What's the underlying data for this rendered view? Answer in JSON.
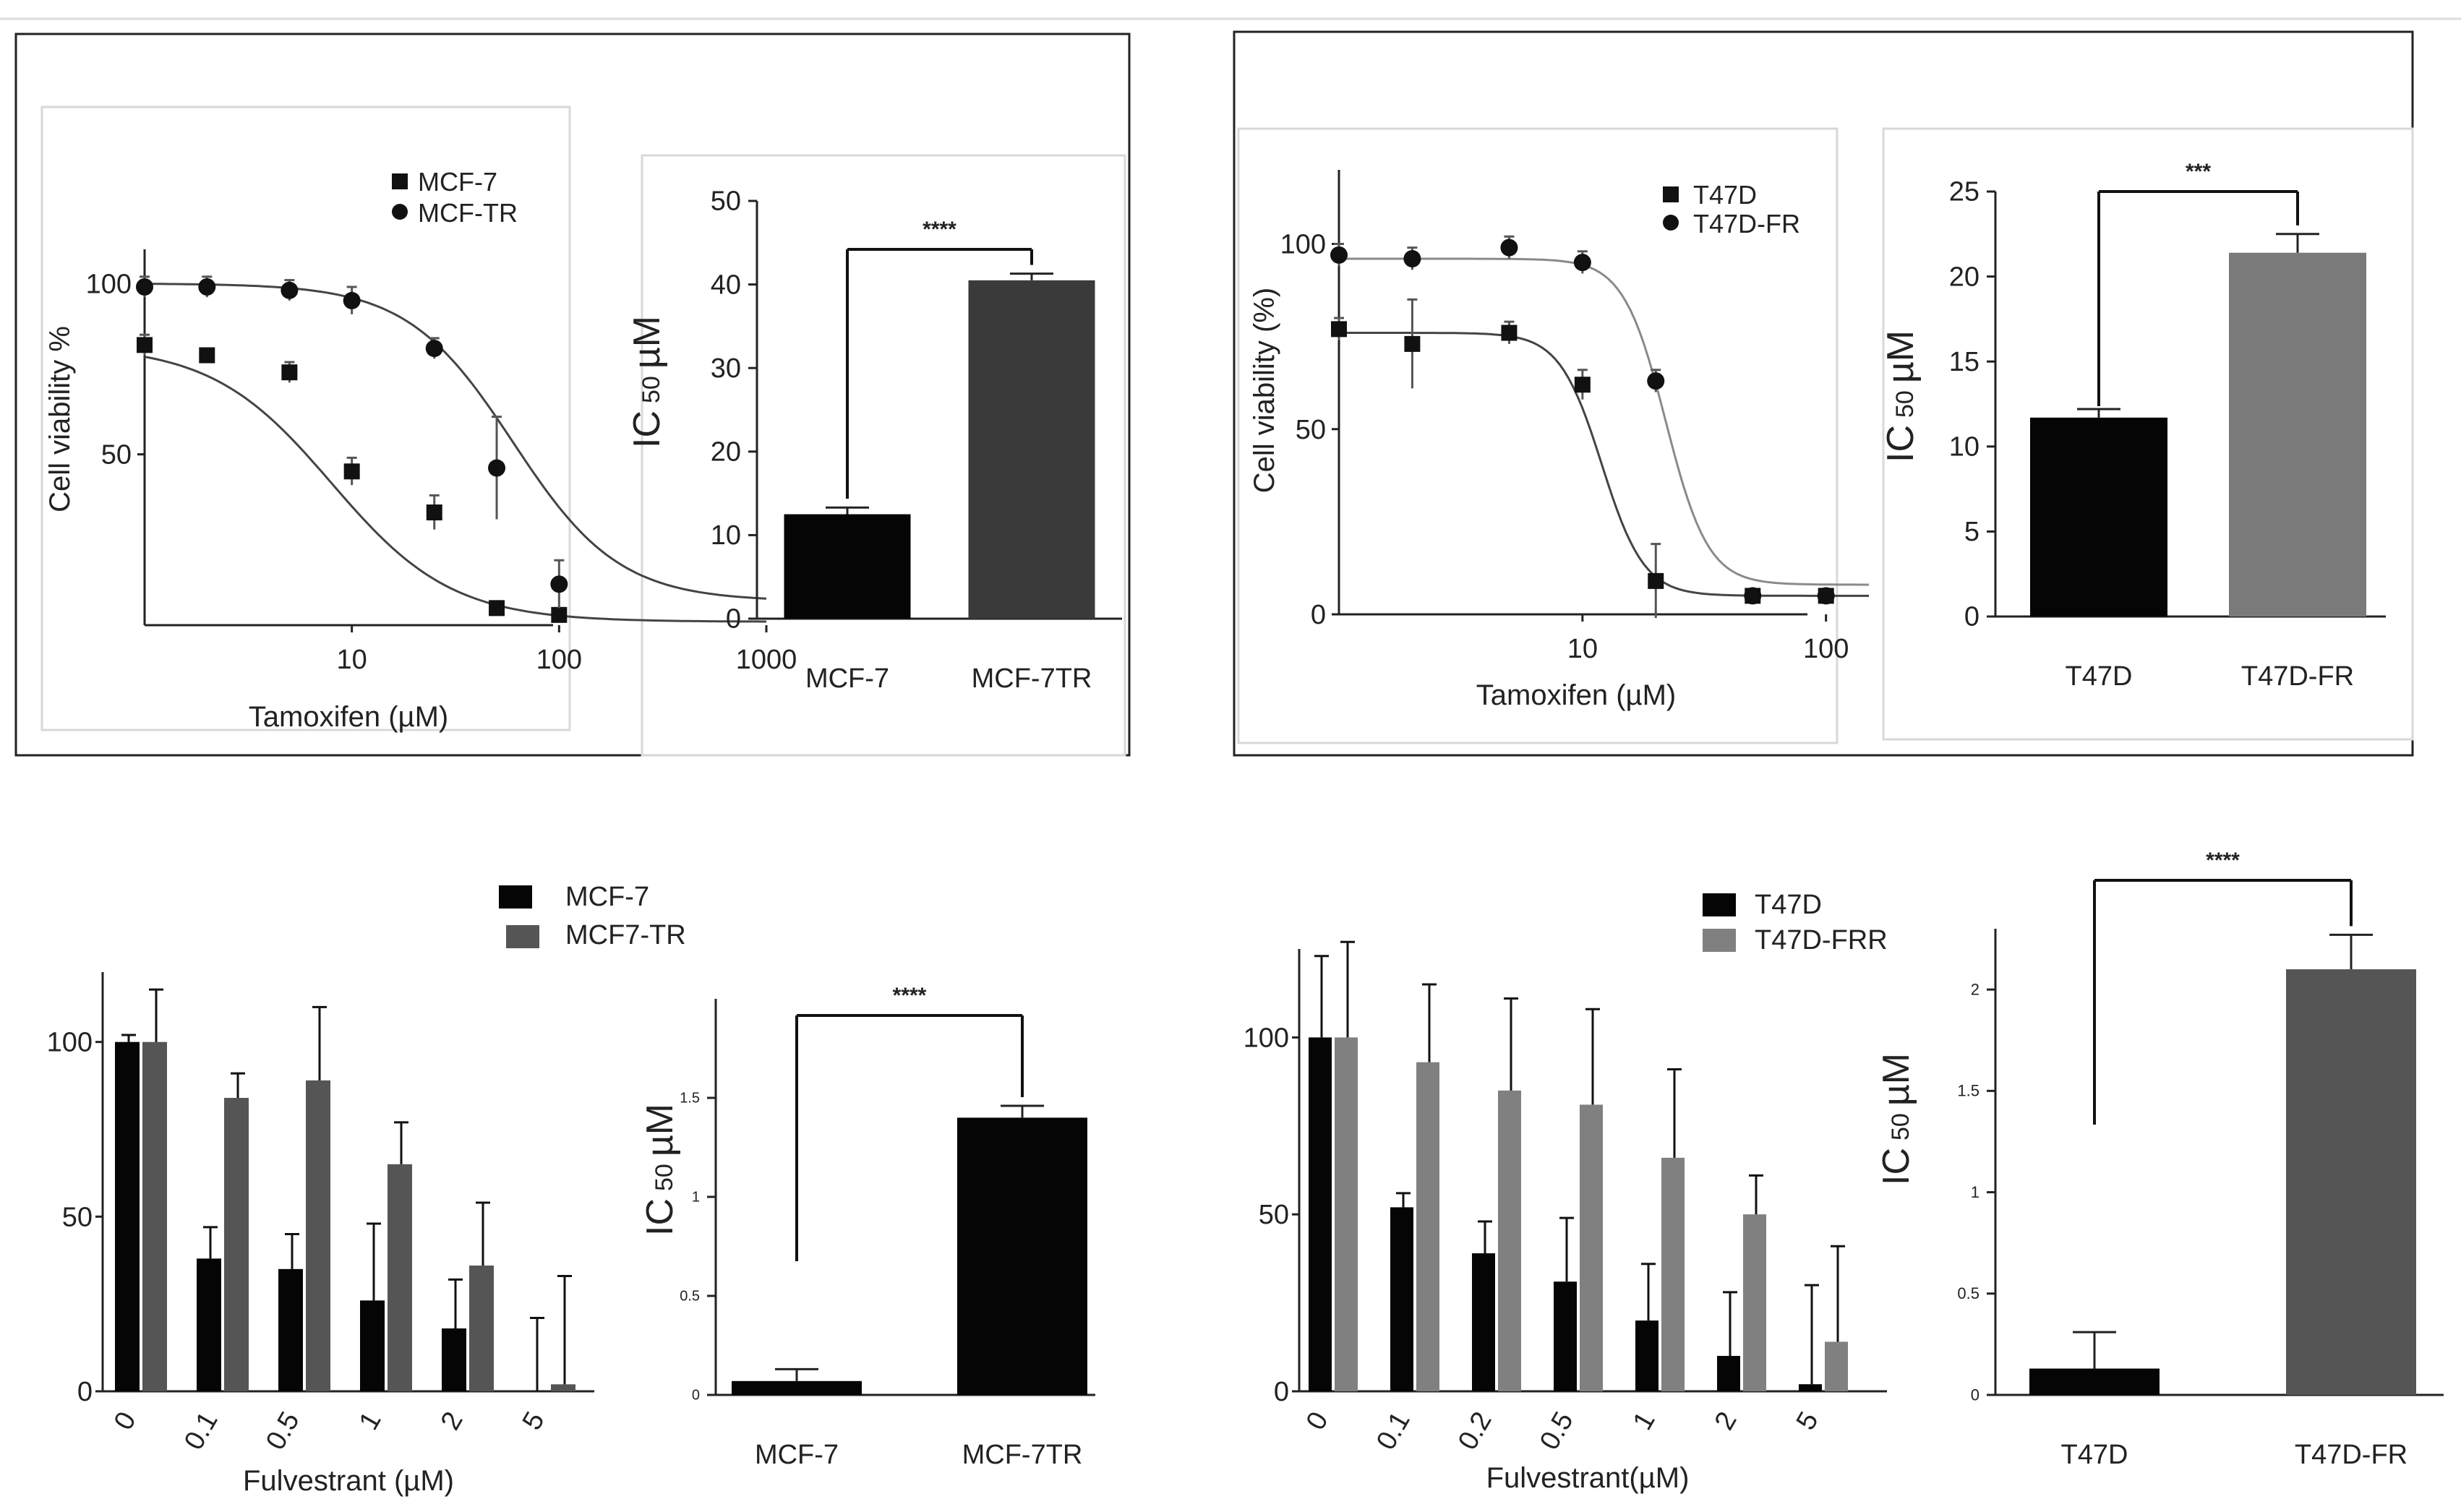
{
  "chart_data": [
    {
      "id": "A",
      "type": "line",
      "title": "",
      "xlabel": "Tamoxifen (µM)",
      "ylabel": "Cell viability %",
      "xscale": "log",
      "xlim": [
        1,
        1000
      ],
      "ylim": [
        0,
        110
      ],
      "xticks": [
        10,
        100,
        1000
      ],
      "xtick_labels": [
        "10",
        "100",
        "1000"
      ],
      "yticks": [
        50,
        100
      ],
      "ytick_labels": [
        "50",
        "100"
      ],
      "legend": [
        {
          "name": "MCF-7",
          "marker": "square"
        },
        {
          "name": "MCF-TR",
          "marker": "circle"
        }
      ],
      "series": [
        {
          "name": "MCF-7",
          "marker": "square",
          "x": [
            1,
            2,
            5,
            10,
            25,
            50,
            100
          ],
          "y": [
            82,
            79,
            74,
            45,
            33,
            5,
            3
          ],
          "err": [
            3,
            2,
            3,
            4,
            5,
            2,
            2
          ],
          "curve": {
            "top": 82,
            "bottom": 1,
            "ic50": 8,
            "hill": 1.5
          }
        },
        {
          "name": "MCF-TR",
          "marker": "circle",
          "x": [
            1,
            2,
            5,
            10,
            25,
            50,
            100
          ],
          "y": [
            99,
            99,
            98,
            95,
            81,
            46,
            12
          ],
          "err": [
            3,
            3,
            3,
            4,
            3,
            15,
            7
          ],
          "curve": {
            "top": 100,
            "bottom": 7,
            "ic50": 60,
            "hill": 1.7
          }
        }
      ]
    },
    {
      "id": "B",
      "type": "bar",
      "ylabel_main": "IC",
      "ylabel_sub": "50",
      "ylabel_unit": "µM",
      "ylim": [
        0,
        50
      ],
      "yticks": [
        0,
        10,
        20,
        30,
        40,
        50
      ],
      "ytick_labels": [
        "0",
        "10",
        "20",
        "30",
        "40",
        "50"
      ],
      "categories": [
        "MCF-7",
        "MCF-7TR"
      ],
      "values": [
        12.5,
        40.5
      ],
      "errors": [
        0.8,
        0.8
      ],
      "colors": [
        "#050505",
        "#3a3a3a"
      ],
      "significance": "****"
    },
    {
      "id": "C",
      "type": "line",
      "xlabel": "Tamoxifen (µM)",
      "ylabel": "Cell viability (%)",
      "xscale": "log",
      "xlim": [
        1,
        150
      ],
      "ylim": [
        0,
        120
      ],
      "xticks": [
        10,
        100
      ],
      "xtick_labels": [
        "10",
        "100"
      ],
      "yticks": [
        0,
        50,
        100
      ],
      "ytick_labels": [
        "0",
        "50",
        "100"
      ],
      "legend": [
        {
          "name": "T47D",
          "marker": "square"
        },
        {
          "name": "T47D-FR",
          "marker": "circle"
        }
      ],
      "series": [
        {
          "name": "T47D",
          "marker": "square",
          "color": "#111111",
          "x": [
            1,
            2,
            5,
            10,
            20,
            50,
            100
          ],
          "y": [
            77,
            73,
            76,
            62,
            9,
            5,
            5
          ],
          "err": [
            3,
            12,
            3,
            4,
            10,
            1,
            1
          ],
          "curve": {
            "top": 76,
            "bottom": 5,
            "ic50": 12,
            "hill": 5
          }
        },
        {
          "name": "T47D-FR",
          "marker": "circle",
          "color": "#111111",
          "curve_color": "#8a8a8a",
          "x": [
            1,
            2,
            5,
            10,
            20,
            50,
            100
          ],
          "y": [
            97,
            96,
            99,
            95,
            63,
            5,
            5
          ],
          "err": [
            3,
            3,
            3,
            3,
            3,
            1,
            1
          ],
          "curve": {
            "top": 96,
            "bottom": 8,
            "ic50": 22,
            "hill": 5
          }
        }
      ]
    },
    {
      "id": "D",
      "type": "bar",
      "ylabel_main": "IC",
      "ylabel_sub": "50",
      "ylabel_unit": "µM",
      "ylim": [
        0,
        25
      ],
      "yticks": [
        0,
        5,
        10,
        15,
        20,
        25
      ],
      "ytick_labels": [
        "0",
        "5",
        "10",
        "15",
        "20",
        "25"
      ],
      "categories": [
        "T47D",
        "T47D-FR"
      ],
      "values": [
        11.7,
        21.4
      ],
      "errors": [
        0.5,
        1.1
      ],
      "colors": [
        "#050505",
        "#7a7a7a"
      ],
      "significance": "***"
    },
    {
      "id": "E",
      "type": "bar",
      "xlabel": "Fulvestrant (µM)",
      "ylim": [
        0,
        120
      ],
      "yticks": [
        0,
        50,
        100
      ],
      "ytick_labels": [
        "0",
        "50",
        "100"
      ],
      "categories": [
        "0",
        "0.1",
        "0.5",
        "1",
        "2",
        "5"
      ],
      "series": [
        {
          "name": "MCF-7",
          "color": "#050505",
          "values": [
            100,
            38,
            35,
            26,
            18,
            0
          ],
          "errors": [
            2,
            9,
            10,
            22,
            14,
            21
          ]
        },
        {
          "name": "MCF7-TR",
          "color": "#555555",
          "values": [
            100,
            84,
            89,
            65,
            36,
            2
          ],
          "errors": [
            15,
            7,
            21,
            12,
            18,
            31
          ]
        }
      ]
    },
    {
      "id": "F",
      "type": "bar",
      "ylabel_main": "IC",
      "ylabel_sub": "50",
      "ylabel_unit": "µM",
      "ylim": [
        0,
        2
      ],
      "yticks": [
        0,
        0.5,
        1,
        1.5
      ],
      "ytick_labels": [
        "0",
        "0.5",
        "1",
        "1.5"
      ],
      "categories": [
        "MCF-7",
        "MCF-7TR"
      ],
      "values": [
        0.07,
        1.4
      ],
      "errors": [
        0.06,
        0.06
      ],
      "colors": [
        "#050505",
        "#050505"
      ],
      "significance": "****"
    },
    {
      "id": "G",
      "type": "bar",
      "xlabel": "Fulvestrant(µM)",
      "ylim": [
        0,
        125
      ],
      "yticks": [
        0,
        50,
        100
      ],
      "ytick_labels": [
        "0",
        "50",
        "100"
      ],
      "categories": [
        "0",
        "0.1",
        "0.2",
        "0.5",
        "1",
        "2",
        "5"
      ],
      "series": [
        {
          "name": "T47D",
          "color": "#050505",
          "values": [
            100,
            52,
            39,
            31,
            20,
            10,
            2
          ],
          "errors": [
            23,
            4,
            9,
            18,
            16,
            18,
            28
          ]
        },
        {
          "name": "T47D-FRR",
          "color": "#808080",
          "values": [
            100,
            93,
            85,
            81,
            66,
            50,
            14
          ],
          "errors": [
            27,
            22,
            26,
            27,
            25,
            11,
            27
          ]
        }
      ]
    },
    {
      "id": "H",
      "type": "bar",
      "ylabel_main": "IC",
      "ylabel_sub": "50",
      "ylabel_unit": "µM",
      "ylim": [
        0,
        2.3
      ],
      "yticks": [
        0,
        0.5,
        1,
        1.5,
        2
      ],
      "ytick_labels": [
        "0",
        "0.5",
        "1",
        "1.5",
        "2"
      ],
      "categories": [
        "T47D",
        "T47D-FR"
      ],
      "values": [
        0.13,
        2.1
      ],
      "errors": [
        0.18,
        0.17
      ],
      "colors": [
        "#050505",
        "#555555"
      ],
      "significance": "****"
    }
  ]
}
